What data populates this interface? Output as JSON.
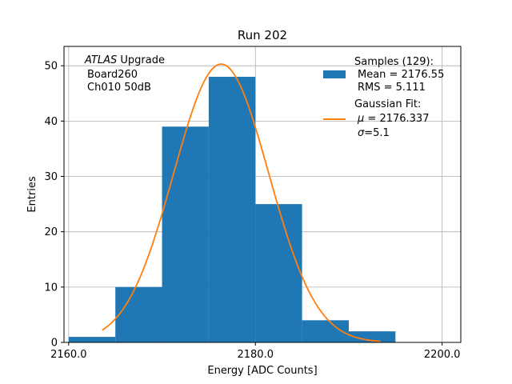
{
  "chart_data": {
    "type": "histogram",
    "title": "Run 202",
    "xlabel": "Energy [ADC Counts]",
    "ylabel": "Entries",
    "xlim": [
      2159.5,
      2202.0
    ],
    "ylim": [
      0,
      53.5
    ],
    "grid": true,
    "legend_position": "top-right",
    "x_ticks": [
      2160,
      2180,
      2200
    ],
    "x_tick_labels": [
      "2160.0",
      "2180.0",
      "2200.0"
    ],
    "y_ticks": [
      0,
      10,
      20,
      30,
      40,
      50
    ],
    "y_tick_labels": [
      "0",
      "10",
      "20",
      "30",
      "40",
      "50"
    ],
    "annotation": {
      "line1_italic": "ATLAS",
      "line1_rest": " Upgrade",
      "line2": "Board260",
      "line3": "Ch010 50dB"
    },
    "bars": {
      "color": "#1f77b4",
      "edges": [
        2160,
        2165,
        2170,
        2175,
        2180,
        2185,
        2190,
        2195,
        2200
      ],
      "counts": [
        1,
        10,
        39,
        48,
        25,
        4,
        2,
        0
      ]
    },
    "fit": {
      "color": "#ff7f0e",
      "mu": 2176.337,
      "sigma": 5.1,
      "amplitude": 50.3,
      "x_range": [
        2163.6,
        2193.4
      ]
    },
    "legend": {
      "samples_title": "Samples (129):",
      "samples_mean": "Mean = 2176.55",
      "samples_rms": "RMS = 5.111",
      "fit_title": "Gaussian Fit:",
      "fit_mu_symbol": "μ",
      "fit_mu_value": " = 2176.337",
      "fit_sigma_symbol": "σ",
      "fit_sigma_value": "=5.1"
    }
  }
}
